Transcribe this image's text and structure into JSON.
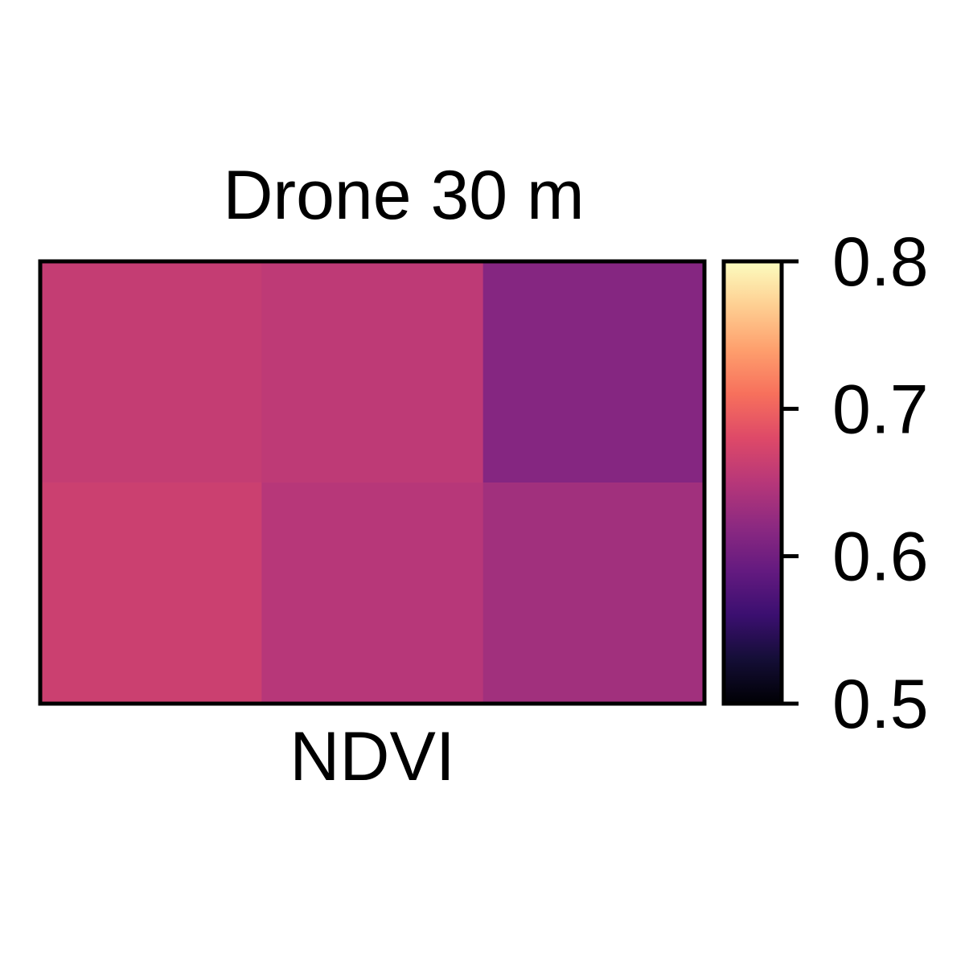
{
  "chart_data": {
    "type": "heatmap",
    "title": "Drone 30 m",
    "xlabel": "NDVI",
    "ylabel": "",
    "rows": 2,
    "cols": 3,
    "values": [
      [
        0.66,
        0.655,
        0.615
      ],
      [
        0.665,
        0.65,
        0.635
      ]
    ],
    "colorbar": {
      "min": 0.5,
      "max": 0.8,
      "ticks": [
        0.8,
        0.7,
        0.6,
        0.5
      ],
      "tick_labels": [
        "0.8",
        "0.7",
        "0.6",
        "0.5"
      ],
      "colormap": "magma"
    },
    "grid": false,
    "legend": "right"
  }
}
